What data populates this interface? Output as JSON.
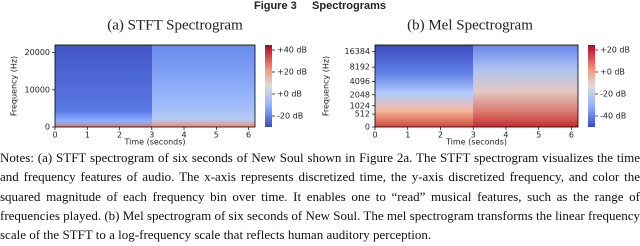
{
  "figure": {
    "title": "Figure 3     Spectrograms",
    "panels": [
      {
        "title": "(a) STFT Spectrogram",
        "ylabel": "Frequency (Hz)",
        "xlabel": "Time (seconds)",
        "scale": "linear",
        "xlim": [
          0,
          6.2
        ],
        "xticks": [
          0,
          1,
          2,
          3,
          4,
          5,
          6
        ],
        "ylim": [
          0,
          22050
        ],
        "yticks": [
          0,
          10000,
          20000
        ],
        "colorbar_ticks": [
          "+40 dB",
          "+20 dB",
          "+0 dB",
          "-20 dB"
        ]
      },
      {
        "title": "(b) Mel Spectrogram",
        "ylabel": "Frequency (Hz)",
        "xlabel": "Time (seconds)",
        "scale": "mel",
        "xlim": [
          0,
          6.2
        ],
        "xticks": [
          0,
          1,
          2,
          3,
          4,
          5,
          6
        ],
        "ylim": [
          0,
          22050
        ],
        "yticks": [
          0,
          512,
          1024,
          2048,
          4096,
          8192,
          16384
        ],
        "colorbar_ticks": [
          "+20 dB",
          "+0 dB",
          "-20 dB",
          "-40 dB"
        ]
      }
    ]
  },
  "notes": "Notes: (a) STFT spectrogram of six seconds of New Soul shown in Figure 2a. The STFT spectrogram visualizes the time and frequency features of audio. The x-axis represents discretized time, the y-axis discretized frequency, and color the squared magnitude of each frequency bin over time. It enables one to “read” musical features, such as the range of frequencies played. (b) Mel spectrogram of six seconds of New Soul. The mel spectrogram transforms the linear frequency scale of the STFT to a log-frequency scale that reflects human auditory perception."
}
